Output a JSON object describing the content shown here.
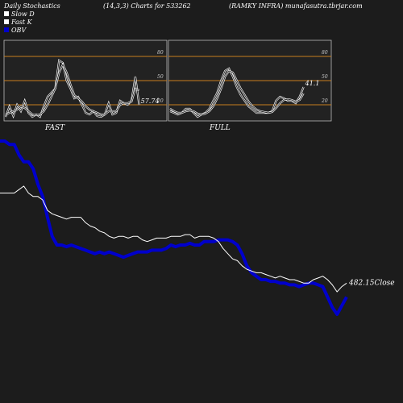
{
  "header": {
    "title": "Daily Stochastics",
    "params": "(14,3,3) Charts for 533262",
    "symbol": "(RAMKY INFRA) munafasutra.tbrjar.com"
  },
  "legend": [
    {
      "label": "Slow  D",
      "color": "#ffffff"
    },
    {
      "label": "Fast  K",
      "color": "#ffffff"
    },
    {
      "label": "OBV",
      "color": "#0000cc"
    }
  ],
  "colors": {
    "background": "#1c1c1c",
    "panel": "#222222",
    "level_line": "#c87d1e",
    "obv": "#0000cc",
    "price": "#ffffff"
  },
  "chart_data": [
    {
      "type": "line",
      "title": "FAST",
      "levels": [
        20,
        50,
        80
      ],
      "ylim": [
        0,
        100
      ],
      "last_value_label": "57.74",
      "series": [
        {
          "name": "Fast K",
          "values": [
            5,
            18,
            6,
            20,
            12,
            25,
            10,
            5,
            8,
            5,
            18,
            30,
            35,
            40,
            75,
            72,
            50,
            40,
            28,
            30,
            20,
            10,
            8,
            12,
            6,
            5,
            8,
            22,
            8,
            10,
            25,
            22,
            20,
            25,
            55,
            20
          ]
        },
        {
          "name": "Slow D",
          "values": [
            8,
            10,
            12,
            14,
            18,
            16,
            12,
            8,
            7,
            8,
            12,
            20,
            30,
            40,
            60,
            70,
            60,
            45,
            32,
            28,
            24,
            18,
            14,
            12,
            10,
            8,
            8,
            12,
            12,
            12,
            20,
            22,
            22,
            24,
            40,
            38
          ]
        }
      ]
    },
    {
      "type": "line",
      "title": "FULL",
      "levels": [
        20,
        50,
        80
      ],
      "ylim": [
        0,
        100
      ],
      "last_value_label": "41.1",
      "series": [
        {
          "name": "Full K",
          "values": [
            12,
            10,
            8,
            10,
            15,
            15,
            10,
            5,
            8,
            10,
            15,
            25,
            35,
            50,
            62,
            65,
            55,
            42,
            32,
            25,
            18,
            14,
            10,
            10,
            10,
            10,
            12,
            25,
            30,
            28,
            25,
            25,
            22,
            30,
            42
          ]
        },
        {
          "name": "Full D",
          "values": [
            15,
            12,
            10,
            10,
            12,
            13,
            12,
            9,
            8,
            9,
            12,
            18,
            28,
            40,
            55,
            62,
            60,
            50,
            40,
            32,
            24,
            18,
            14,
            12,
            11,
            10,
            11,
            16,
            22,
            26,
            27,
            26,
            24,
            26,
            34
          ]
        }
      ]
    },
    {
      "type": "line",
      "title": "",
      "last_value_label": "482.15Close",
      "series": [
        {
          "name": "OBV",
          "values": [
            70,
            70,
            68,
            68,
            62,
            58,
            58,
            54,
            45,
            38,
            26,
            15,
            10,
            10,
            9,
            10,
            9,
            8,
            7,
            6,
            5,
            6,
            5,
            6,
            5,
            4,
            3,
            4,
            5,
            6,
            6,
            6,
            7,
            7,
            7,
            8,
            10,
            9,
            10,
            10,
            11,
            10,
            10,
            12,
            12,
            12,
            13,
            13,
            13,
            12,
            10,
            5,
            -2,
            -6,
            -8,
            -10,
            -10,
            -11,
            -11,
            -12,
            -12,
            -13,
            -13,
            -14,
            -13,
            -12,
            -12,
            -13,
            -14,
            -20,
            -26,
            -30,
            -25,
            -20
          ]
        },
        {
          "name": "Close",
          "values": [
            40,
            40,
            40,
            40,
            42,
            44,
            40,
            38,
            38,
            36,
            30,
            28,
            27,
            26,
            25,
            26,
            26,
            26,
            23,
            21,
            20,
            18,
            17,
            15,
            14,
            15,
            15,
            14,
            15,
            15,
            13,
            12,
            13,
            14,
            14,
            14,
            15,
            15,
            15,
            16,
            16,
            14,
            15,
            15,
            15,
            14,
            12,
            8,
            5,
            2,
            1,
            -2,
            -4,
            -5,
            -6,
            -6,
            -7,
            -8,
            -9,
            -8,
            -9,
            -10,
            -10,
            -11,
            -12,
            -12,
            -10,
            -9,
            -8,
            -10,
            -13,
            -17,
            -14,
            -12
          ]
        }
      ]
    }
  ]
}
